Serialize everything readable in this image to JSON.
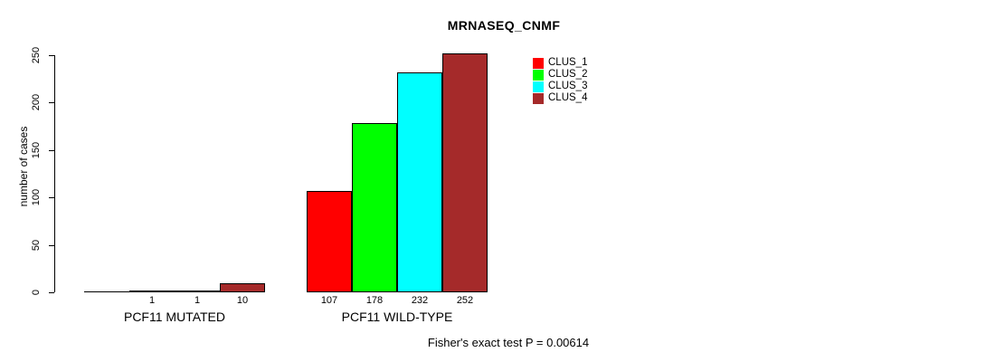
{
  "title": "MRNASEQ_CNMF",
  "chart_data": {
    "type": "bar",
    "title": "MRNASEQ_CNMF",
    "ylabel": "number of cases",
    "xlabel": "",
    "ylim": [
      0,
      250
    ],
    "yticks": [
      0,
      50,
      100,
      150,
      200,
      250
    ],
    "grid": false,
    "legend_position": "top-right",
    "categories": [
      "PCF11 MUTATED",
      "PCF11 WILD-TYPE"
    ],
    "series": [
      {
        "name": "CLUS_1",
        "color": "#ff0000",
        "values": [
          0,
          107
        ]
      },
      {
        "name": "CLUS_2",
        "color": "#00ff00",
        "values": [
          1,
          178
        ]
      },
      {
        "name": "CLUS_3",
        "color": "#00ffff",
        "values": [
          1,
          232
        ]
      },
      {
        "name": "CLUS_4",
        "color": "#a52a2a",
        "values": [
          10,
          252
        ]
      }
    ],
    "bar_labels": [
      [
        "",
        "1",
        "1",
        "10"
      ],
      [
        "107",
        "178",
        "232",
        "252"
      ]
    ],
    "annotation": "Fisher's exact test P = 0.00614"
  }
}
